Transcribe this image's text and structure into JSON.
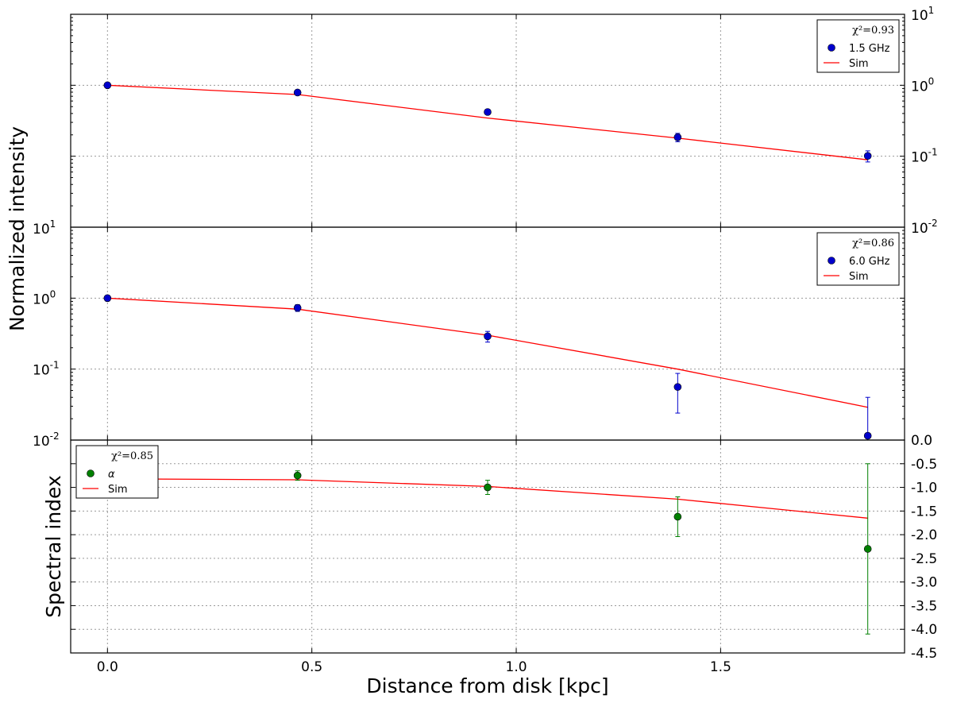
{
  "chart_data": [
    {
      "type": "scatter",
      "panel": "top",
      "yscale": "log",
      "ylim": [
        0.01,
        10
      ],
      "xlim": [
        -0.09,
        1.95
      ],
      "grid": true,
      "ylabel": "Normalized intensity",
      "y_tick_labels": [
        {
          "value": 10,
          "base": "10",
          "exp": "1"
        },
        {
          "value": 1,
          "base": "10",
          "exp": "0"
        },
        {
          "value": 0.1,
          "base": "10",
          "exp": "-1"
        },
        {
          "value": 0.01,
          "base": "10",
          "exp": "-2"
        }
      ],
      "legend": {
        "position": "top-right",
        "chi_label": "χ²=0.93",
        "points_label": "1.5 GHz",
        "line_label": "Sim"
      },
      "series": [
        {
          "name": "1.5 GHz",
          "kind": "points",
          "color": "#0000cc",
          "x": [
            0.0,
            0.465,
            0.93,
            1.395,
            1.86
          ],
          "y": [
            1.0,
            0.79,
            0.42,
            0.185,
            0.101
          ],
          "err_low": [
            0.04,
            0.04,
            0.03,
            0.025,
            0.018
          ],
          "err_high": [
            0.04,
            0.04,
            0.03,
            0.025,
            0.018
          ]
        },
        {
          "name": "Sim",
          "kind": "line",
          "color": "#ff0000",
          "x": [
            0.0,
            0.465,
            0.93,
            1.395,
            1.86
          ],
          "y": [
            1.0,
            0.74,
            0.345,
            0.18,
            0.089
          ]
        }
      ]
    },
    {
      "type": "scatter",
      "panel": "middle",
      "yscale": "log",
      "ylim": [
        0.01,
        10
      ],
      "xlim": [
        -0.09,
        1.95
      ],
      "grid": true,
      "y_tick_labels": [
        {
          "value": 10,
          "base": "10",
          "exp": "1"
        },
        {
          "value": 1,
          "base": "10",
          "exp": "0"
        },
        {
          "value": 0.1,
          "base": "10",
          "exp": "-1"
        },
        {
          "value": 0.01,
          "base": "10",
          "exp": "-2"
        }
      ],
      "legend": {
        "position": "top-right",
        "chi_label": "χ²=0.86",
        "points_label": "6.0 GHz",
        "line_label": "Sim"
      },
      "series": [
        {
          "name": "6.0 GHz",
          "kind": "points",
          "color": "#0000cc",
          "x": [
            0.0,
            0.465,
            0.93,
            1.395,
            1.86
          ],
          "y": [
            1.0,
            0.73,
            0.29,
            0.056,
            0.0115
          ],
          "err_low": [
            0.09,
            0.08,
            0.05,
            0.032,
            0.0015
          ],
          "err_high": [
            0.09,
            0.08,
            0.05,
            0.031,
            0.0285
          ]
        },
        {
          "name": "Sim",
          "kind": "line",
          "color": "#ff0000",
          "x": [
            0.0,
            0.465,
            0.93,
            1.395,
            1.86
          ],
          "y": [
            1.0,
            0.7,
            0.3,
            0.1,
            0.029
          ]
        }
      ]
    },
    {
      "type": "scatter",
      "panel": "bottom",
      "yscale": "linear",
      "ylim": [
        -4.5,
        0.0
      ],
      "xlim": [
        -0.09,
        1.95
      ],
      "grid": true,
      "ylabel": "Spectral index",
      "xlabel": "Distance from disk [kpc]",
      "x_ticks": [
        0.0,
        0.5,
        1.0,
        1.5
      ],
      "x_tick_labels": [
        "0.0",
        "0.5",
        "1.0",
        "1.5"
      ],
      "y_ticks": [
        0.0,
        -0.5,
        -1.0,
        -1.5,
        -2.0,
        -2.5,
        -3.0,
        -3.5,
        -4.0,
        -4.5
      ],
      "y_tick_labels": [
        "0.0",
        "-0.5",
        "-1.0",
        "-1.5",
        "-2.0",
        "-2.5",
        "-3.0",
        "-3.5",
        "-4.0",
        "-4.5"
      ],
      "legend": {
        "position": "top-left",
        "chi_label": "χ²=0.85",
        "points_label": "α",
        "line_label": "Sim"
      },
      "series": [
        {
          "name": "α",
          "kind": "points",
          "color": "#008000",
          "x": [
            0.465,
            0.93,
            1.395,
            1.86
          ],
          "y": [
            -0.75,
            -1.0,
            -1.62,
            -2.3
          ],
          "err_low": [
            0.1,
            0.15,
            0.42,
            1.8
          ],
          "err_high": [
            0.1,
            0.15,
            0.42,
            1.8
          ]
        },
        {
          "name": "Sim",
          "kind": "line",
          "color": "#ff0000",
          "x": [
            0.0,
            0.465,
            0.93,
            1.395,
            1.86
          ],
          "y": [
            -0.82,
            -0.84,
            -0.98,
            -1.25,
            -1.65
          ]
        }
      ]
    }
  ]
}
